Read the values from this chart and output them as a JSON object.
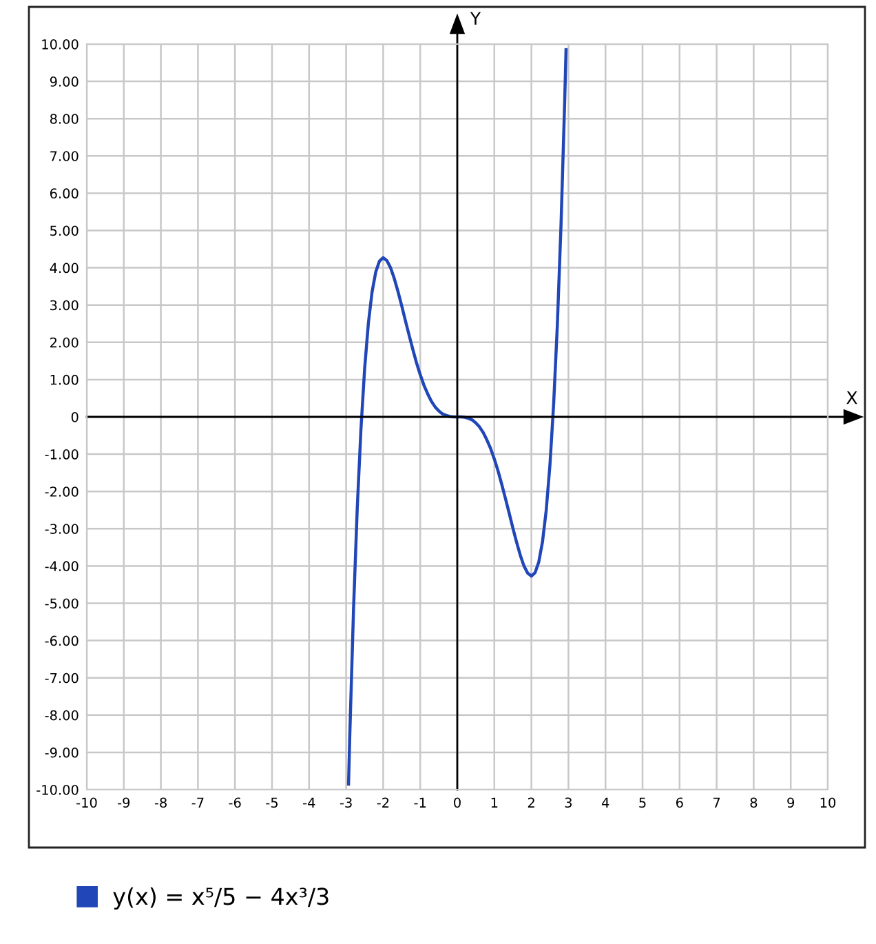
{
  "chart_data": {
    "type": "line",
    "xlabel": "X",
    "ylabel": "Y",
    "series": [
      {
        "name": "y(x) = x⁵/5 − 4x³/3",
        "color": "#2046b8",
        "x": [
          -2.935,
          -2.9,
          -2.8,
          -2.7,
          -2.6,
          -2.5,
          -2.4,
          -2.3,
          -2.2,
          -2.1,
          -2.0,
          -1.9,
          -1.8,
          -1.7,
          -1.6,
          -1.5,
          -1.4,
          -1.3,
          -1.2,
          -1.1,
          -1.0,
          -0.9,
          -0.8,
          -0.7,
          -0.6,
          -0.5,
          -0.4,
          -0.3,
          -0.2,
          -0.1,
          0,
          0.1,
          0.2,
          0.3,
          0.4,
          0.5,
          0.6,
          0.7,
          0.8,
          0.9,
          1.0,
          1.1,
          1.2,
          1.3,
          1.4,
          1.5,
          1.6,
          1.7,
          1.8,
          1.9,
          2.0,
          2.1,
          2.2,
          2.3,
          2.4,
          2.5,
          2.6,
          2.7,
          2.8,
          2.9,
          2.935
        ],
        "values": [
          -9.85,
          -8.5,
          -5.15,
          -2.45,
          -0.33,
          1.3,
          2.51,
          3.35,
          3.89,
          4.18,
          4.27,
          4.19,
          4.0,
          3.71,
          3.36,
          2.98,
          2.58,
          2.19,
          1.81,
          1.45,
          1.13,
          0.85,
          0.62,
          0.42,
          0.27,
          0.16,
          0.08,
          0.04,
          0.01,
          0.0,
          0,
          0.0,
          -0.01,
          -0.04,
          -0.08,
          -0.16,
          -0.27,
          -0.42,
          -0.62,
          -0.85,
          -1.13,
          -1.45,
          -1.81,
          -2.19,
          -2.58,
          -2.98,
          -3.36,
          -3.71,
          -4.0,
          -4.19,
          -4.27,
          -4.18,
          -3.89,
          -3.35,
          -2.51,
          -1.3,
          0.33,
          2.45,
          5.15,
          8.5,
          9.85
        ]
      }
    ],
    "xlim": [
      -10,
      10
    ],
    "ylim": [
      -10,
      10
    ],
    "xticks": [
      -10,
      -9,
      -8,
      -7,
      -6,
      -5,
      -4,
      -3,
      -2,
      -1,
      0,
      1,
      2,
      3,
      4,
      5,
      6,
      7,
      8,
      9,
      10
    ],
    "yticks": [
      {
        "value": -10,
        "label": "-10.00"
      },
      {
        "value": -9,
        "label": "-9.00"
      },
      {
        "value": -8,
        "label": "-8.00"
      },
      {
        "value": -7,
        "label": "-7.00"
      },
      {
        "value": -6,
        "label": "-6.00"
      },
      {
        "value": -5,
        "label": "-5.00"
      },
      {
        "value": -4,
        "label": "-4.00"
      },
      {
        "value": -3,
        "label": "-3.00"
      },
      {
        "value": -2,
        "label": "-2.00"
      },
      {
        "value": -1,
        "label": "-1.00"
      },
      0,
      {
        "value": 1,
        "label": "1.00"
      },
      {
        "value": 2,
        "label": "2.00"
      },
      {
        "value": 3,
        "label": "3.00"
      },
      {
        "value": 4,
        "label": "4.00"
      },
      {
        "value": 5,
        "label": "5.00"
      },
      {
        "value": 6,
        "label": "6.00"
      },
      {
        "value": 7,
        "label": "7.00"
      },
      {
        "value": 8,
        "label": "8.00"
      },
      {
        "value": 9,
        "label": "9.00"
      },
      {
        "value": 10,
        "label": "10.00"
      }
    ],
    "grid": true,
    "legend": "bottom",
    "marker": "none",
    "line_style": "solid"
  }
}
